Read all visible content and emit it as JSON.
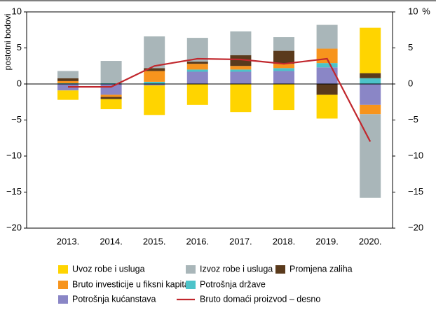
{
  "chart_data": {
    "type": "bar",
    "stacked": true,
    "ylabel": "postotni bodovi",
    "y2label": "%",
    "categories": [
      "2013.",
      "2014.",
      "2015.",
      "2016.",
      "2017.",
      "2018.",
      "2019.",
      "2020."
    ],
    "series": [
      {
        "name": "Uvoz robe i usluga",
        "color": "#ffd400",
        "values": [
          -1.3,
          -1.4,
          -4.1,
          -2.9,
          -3.9,
          -3.6,
          -3.3,
          6.3
        ]
      },
      {
        "name": "Izvoz robe i usluga",
        "color": "#a9b6b9",
        "values": [
          1.0,
          3.1,
          4.4,
          3.3,
          3.3,
          1.9,
          3.3,
          -11.6
        ]
      },
      {
        "name": "Promjena zaliha",
        "color": "#5a3a1c",
        "values": [
          0.4,
          -0.3,
          0.4,
          0.3,
          1.5,
          1.8,
          -1.5,
          0.7
        ]
      },
      {
        "name": "Bruto investicije u fiksni kapital",
        "color": "#f7941d",
        "values": [
          0.3,
          -0.3,
          1.5,
          0.8,
          0.5,
          0.6,
          2.0,
          -1.3
        ]
      },
      {
        "name": "Potrošnja države",
        "color": "#4cc3c9",
        "values": [
          0.1,
          0.1,
          0.3,
          0.3,
          0.3,
          0.4,
          0.6,
          0.8
        ]
      },
      {
        "name": "Potrošnja kućanstava",
        "color": "#8a86c6",
        "values": [
          -0.9,
          -1.5,
          -0.2,
          1.7,
          1.7,
          1.8,
          2.3,
          -2.9
        ]
      },
      {
        "name": "Bruto domaći proizvod – desno",
        "color": "#c1272d",
        "type": "line",
        "axis": "y2",
        "values": [
          -0.4,
          -0.4,
          2.5,
          3.5,
          3.4,
          2.8,
          3.5,
          -8.0
        ]
      }
    ],
    "ylim": [
      -20,
      10
    ],
    "yticks": [
      {
        "value": -20,
        "label": "−20"
      },
      {
        "value": -15,
        "label": "−15"
      },
      {
        "value": -10,
        "label": "−10"
      },
      {
        "value": -5,
        "label": "−5"
      },
      0,
      5,
      10
    ],
    "y2lim": [
      -20,
      10
    ],
    "y2ticks": [
      {
        "value": -20,
        "label": "−20"
      },
      {
        "value": -15,
        "label": "−15"
      },
      {
        "value": -10,
        "label": "−10"
      },
      {
        "value": -5,
        "label": "−5"
      },
      0,
      5,
      10
    ],
    "legend": "bottom"
  }
}
